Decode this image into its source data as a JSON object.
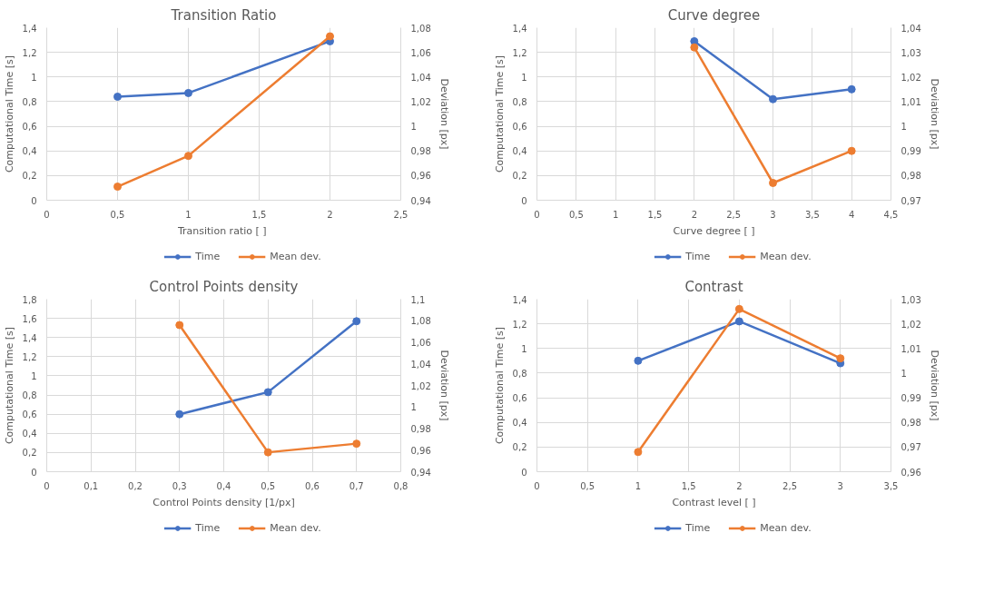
{
  "chart_data": [
    {
      "type": "line",
      "title": "Transition Ratio",
      "xlabel": "Transition ratio  [ ]",
      "ylabel": "Computational Time [s]",
      "y2label": "Deviation [px]",
      "marker": "circle",
      "line_style": "solid",
      "grid": true,
      "legend": "bottom",
      "xlim": [
        0,
        2.5
      ],
      "xticks": [
        0,
        {
          "value": 0.5,
          "label": "0,5"
        },
        1,
        {
          "value": 1.5,
          "label": "1,5"
        },
        2,
        {
          "value": 2.5,
          "label": "2,5"
        }
      ],
      "ylim": [
        0,
        1.4
      ],
      "yticks": [
        0,
        {
          "value": 0.2,
          "label": "0,2"
        },
        {
          "value": 0.4,
          "label": "0,4"
        },
        {
          "value": 0.6,
          "label": "0,6"
        },
        {
          "value": 0.8,
          "label": "0,8"
        },
        1,
        {
          "value": 1.2,
          "label": "1,2"
        },
        {
          "value": 1.4,
          "label": "1,4"
        }
      ],
      "y2lim": [
        0.94,
        1.08
      ],
      "y2ticks": [
        {
          "value": 0.94,
          "label": "0,94"
        },
        {
          "value": 0.96,
          "label": "0,96"
        },
        {
          "value": 0.98,
          "label": "0,98"
        },
        1,
        {
          "value": 1.02,
          "label": "1,02"
        },
        {
          "value": 1.04,
          "label": "1,04"
        },
        {
          "value": 1.06,
          "label": "1,06"
        },
        {
          "value": 1.08,
          "label": "1,08"
        }
      ],
      "x": [
        0.5,
        1,
        2
      ],
      "series": [
        {
          "name": "Time",
          "color": "#4472c4",
          "values": [
            0.84,
            0.87,
            1.29
          ]
        },
        {
          "name": "Mean dev.",
          "color": "#ed7d31",
          "axis": "y2",
          "values": [
            0.951,
            0.976,
            1.073
          ]
        }
      ]
    },
    {
      "type": "line",
      "title": "Curve degree",
      "xlabel": "Curve degree [ ]",
      "ylabel": "Computational Time [s]",
      "y2label": "Deviation [px]",
      "marker": "circle",
      "line_style": "solid",
      "grid": true,
      "legend": "bottom",
      "xlim": [
        0,
        4.5
      ],
      "xticks": [
        0,
        {
          "value": 0.5,
          "label": "0,5"
        },
        1,
        {
          "value": 1.5,
          "label": "1,5"
        },
        2,
        {
          "value": 2.5,
          "label": "2,5"
        },
        3,
        {
          "value": 3.5,
          "label": "3,5"
        },
        4,
        {
          "value": 4.5,
          "label": "4,5"
        }
      ],
      "ylim": [
        0,
        1.4
      ],
      "yticks": [
        0,
        {
          "value": 0.2,
          "label": "0,2"
        },
        {
          "value": 0.4,
          "label": "0,4"
        },
        {
          "value": 0.6,
          "label": "0,6"
        },
        {
          "value": 0.8,
          "label": "0,8"
        },
        1,
        {
          "value": 1.2,
          "label": "1,2"
        },
        {
          "value": 1.4,
          "label": "1,4"
        }
      ],
      "y2lim": [
        0.97,
        1.04
      ],
      "y2ticks": [
        {
          "value": 0.97,
          "label": "0,97"
        },
        {
          "value": 0.98,
          "label": "0,98"
        },
        {
          "value": 0.99,
          "label": "0,99"
        },
        1,
        {
          "value": 1.01,
          "label": "1,01"
        },
        {
          "value": 1.02,
          "label": "1,02"
        },
        {
          "value": 1.03,
          "label": "1,03"
        },
        {
          "value": 1.04,
          "label": "1,04"
        }
      ],
      "x": [
        2,
        3,
        4
      ],
      "series": [
        {
          "name": "Time",
          "color": "#4472c4",
          "values": [
            1.29,
            0.82,
            0.9
          ]
        },
        {
          "name": "Mean dev.",
          "color": "#ed7d31",
          "axis": "y2",
          "values": [
            1.032,
            0.977,
            0.99
          ]
        }
      ]
    },
    {
      "type": "line",
      "title": "Control Points density",
      "xlabel": "Control Points density [1/px]",
      "ylabel": "Computational Time [s]",
      "y2label": "Deviation [px]",
      "marker": "circle",
      "line_style": "solid",
      "grid": true,
      "legend": "bottom",
      "xlim": [
        0,
        0.8
      ],
      "xticks": [
        0,
        {
          "value": 0.1,
          "label": "0,1"
        },
        {
          "value": 0.2,
          "label": "0,2"
        },
        {
          "value": 0.3,
          "label": "0,3"
        },
        {
          "value": 0.4,
          "label": "0,4"
        },
        {
          "value": 0.5,
          "label": "0,5"
        },
        {
          "value": 0.6,
          "label": "0,6"
        },
        {
          "value": 0.7,
          "label": "0,7"
        },
        {
          "value": 0.8,
          "label": "0,8"
        }
      ],
      "ylim": [
        0,
        1.8
      ],
      "yticks": [
        0,
        {
          "value": 0.2,
          "label": "0,2"
        },
        {
          "value": 0.4,
          "label": "0,4"
        },
        {
          "value": 0.6,
          "label": "0,6"
        },
        {
          "value": 0.8,
          "label": "0,8"
        },
        1,
        {
          "value": 1.2,
          "label": "1,2"
        },
        {
          "value": 1.4,
          "label": "1,4"
        },
        {
          "value": 1.6,
          "label": "1,6"
        },
        {
          "value": 1.8,
          "label": "1,8"
        }
      ],
      "y2lim": [
        0.94,
        1.1
      ],
      "y2ticks": [
        {
          "value": 0.94,
          "label": "0,94"
        },
        {
          "value": 0.96,
          "label": "0,96"
        },
        {
          "value": 0.98,
          "label": "0,98"
        },
        1,
        {
          "value": 1.02,
          "label": "1,02"
        },
        {
          "value": 1.04,
          "label": "1,04"
        },
        {
          "value": 1.06,
          "label": "1,06"
        },
        {
          "value": 1.08,
          "label": "1,08"
        },
        {
          "value": 1.1,
          "label": "1,1"
        }
      ],
      "x": [
        0.3,
        0.5,
        0.7
      ],
      "series": [
        {
          "name": "Time",
          "color": "#4472c4",
          "values": [
            0.6,
            0.83,
            1.57
          ]
        },
        {
          "name": "Mean dev.",
          "color": "#ed7d31",
          "axis": "y2",
          "values": [
            1.076,
            0.958,
            0.966
          ]
        }
      ]
    },
    {
      "type": "line",
      "title": "Contrast",
      "xlabel": "Contrast level [ ]",
      "ylabel": "Computational Time [s]",
      "y2label": "Deviation [px]",
      "marker": "circle",
      "line_style": "solid",
      "grid": true,
      "legend": "bottom",
      "xlim": [
        0,
        3.5
      ],
      "xticks": [
        0,
        {
          "value": 0.5,
          "label": "0,5"
        },
        1,
        {
          "value": 1.5,
          "label": "1,5"
        },
        2,
        {
          "value": 2.5,
          "label": "2,5"
        },
        3,
        {
          "value": 3.5,
          "label": "3,5"
        }
      ],
      "ylim": [
        0,
        1.4
      ],
      "yticks": [
        0,
        {
          "value": 0.2,
          "label": "0,2"
        },
        {
          "value": 0.4,
          "label": "0,4"
        },
        {
          "value": 0.6,
          "label": "0,6"
        },
        {
          "value": 0.8,
          "label": "0,8"
        },
        1,
        {
          "value": 1.2,
          "label": "1,2"
        },
        {
          "value": 1.4,
          "label": "1,4"
        }
      ],
      "y2lim": [
        0.96,
        1.03
      ],
      "y2ticks": [
        {
          "value": 0.96,
          "label": "0,96"
        },
        {
          "value": 0.97,
          "label": "0,97"
        },
        {
          "value": 0.98,
          "label": "0,98"
        },
        {
          "value": 0.99,
          "label": "0,99"
        },
        1,
        {
          "value": 1.01,
          "label": "1,01"
        },
        {
          "value": 1.02,
          "label": "1,02"
        },
        {
          "value": 1.03,
          "label": "1,03"
        }
      ],
      "x": [
        1,
        2,
        3
      ],
      "series": [
        {
          "name": "Time",
          "color": "#4472c4",
          "values": [
            0.9,
            1.22,
            0.88
          ]
        },
        {
          "name": "Mean dev.",
          "color": "#ed7d31",
          "axis": "y2",
          "values": [
            0.968,
            1.026,
            1.006
          ]
        }
      ]
    }
  ]
}
